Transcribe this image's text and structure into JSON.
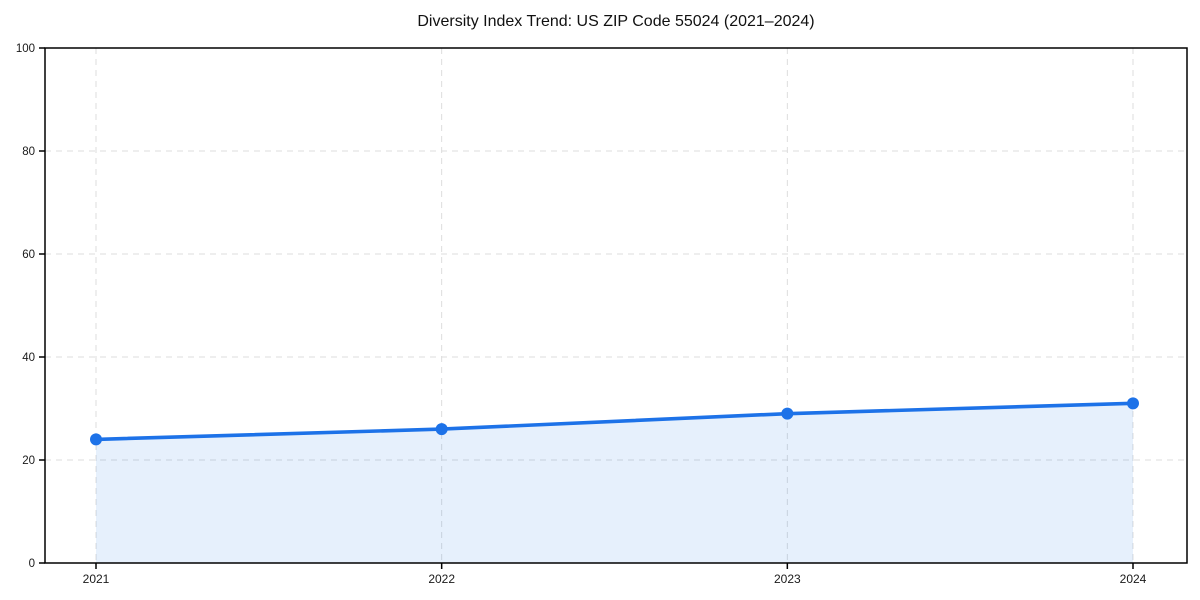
{
  "chart_data": {
    "type": "line",
    "title": "Diversity Index Trend: US ZIP Code 55024 (2021–2024)",
    "x": [
      2021,
      2022,
      2023,
      2024
    ],
    "xticklabels": [
      "2021",
      "2022",
      "2023",
      "2024"
    ],
    "series": [
      {
        "name": "Diversity Index",
        "values": [
          24,
          26,
          29,
          31
        ]
      }
    ],
    "yticks": [
      0,
      20,
      40,
      60,
      80,
      100
    ],
    "ylim": [
      0,
      100
    ],
    "xlabel": "",
    "ylabel": "",
    "legend_position": "none",
    "grid": "dashed, horizontal and vertical at ticks",
    "frame": "full box",
    "colors": {
      "line": "#1d72e8",
      "marker": "#1d72e8",
      "area_fill": "rgba(29,114,232,0.11)",
      "grid": "#dddddd",
      "axis": "#000000",
      "tick_label": "#1a1a1a"
    }
  }
}
